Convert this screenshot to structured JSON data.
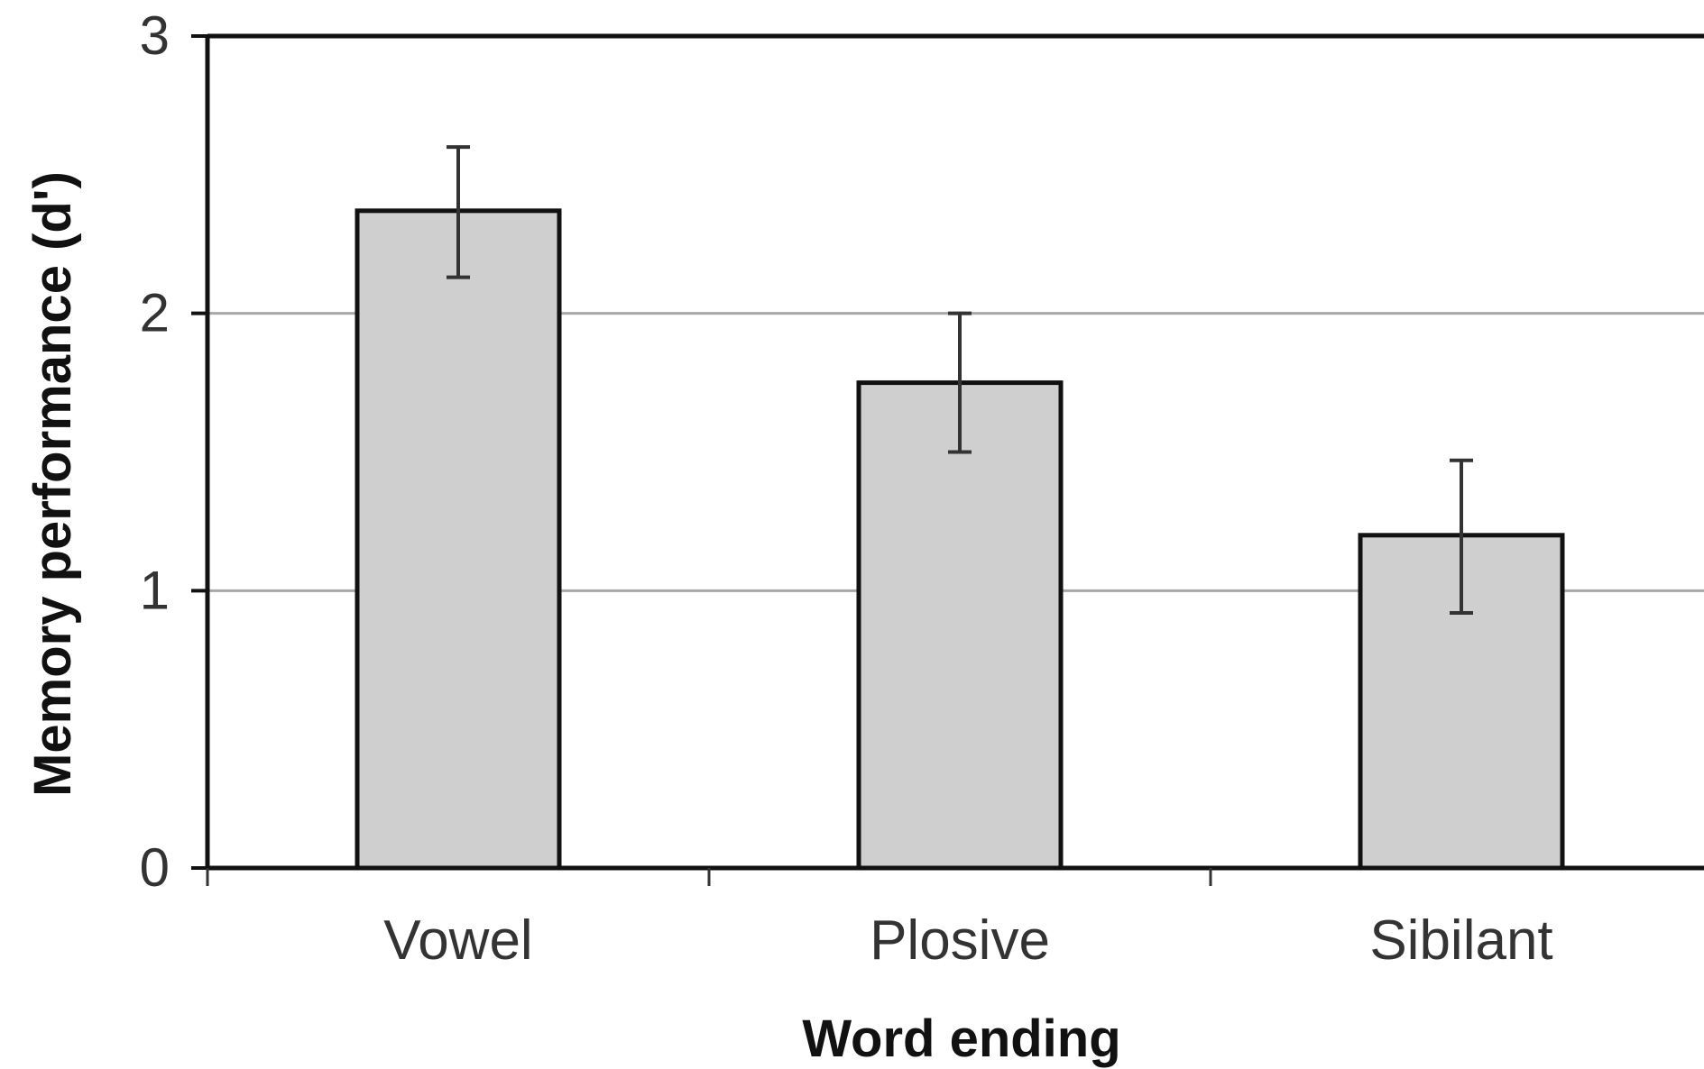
{
  "chart_data": {
    "type": "bar",
    "categories": [
      "Vowel",
      "Plosive",
      "Sibilant"
    ],
    "values": [
      2.37,
      1.75,
      1.2
    ],
    "error_upper": [
      2.6,
      2.0,
      1.47
    ],
    "error_lower": [
      2.13,
      1.5,
      0.92
    ],
    "xlabel": "Word ending",
    "ylabel": "Memory performance (d')",
    "ylim": [
      0,
      3
    ],
    "yticks": [
      "0",
      "1",
      "2",
      "3"
    ],
    "grid": true,
    "bar_color": "#cfcfcf",
    "bar_outline_color": "#111111",
    "gridline_color": "#a8a8a8"
  }
}
